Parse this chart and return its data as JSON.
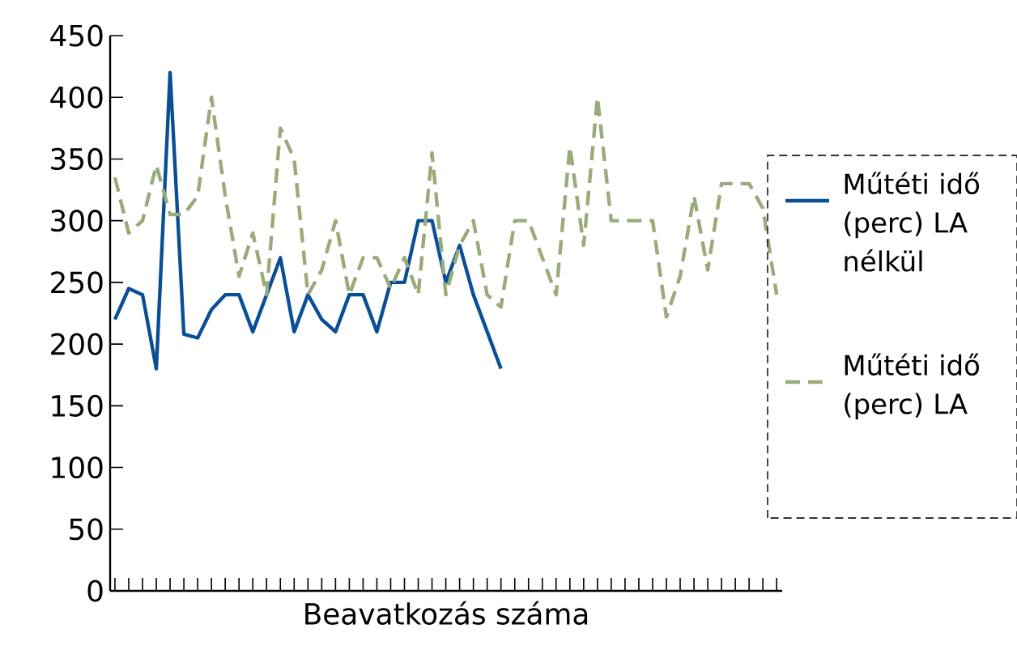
{
  "chart_data": {
    "type": "line",
    "xlabel": "Beavatkozás száma",
    "categories": [
      null,
      null,
      null,
      null,
      null,
      null,
      null,
      null,
      null,
      null,
      null,
      null,
      null,
      null,
      null,
      null,
      null,
      null,
      null,
      null,
      null,
      null,
      null,
      null,
      null,
      null,
      null,
      null,
      null,
      null,
      null,
      null,
      null,
      null,
      null,
      null,
      null,
      null,
      null,
      null,
      null,
      null,
      null,
      null,
      null,
      null,
      null,
      null,
      null
    ],
    "series": [
      {
        "name": "Műtéti idő (perc) LA nélkül",
        "color": "#0a4f96",
        "line_style": "solid",
        "values": [
          220,
          245,
          240,
          180,
          420,
          208,
          205,
          228,
          240,
          240,
          210,
          240,
          270,
          210,
          240,
          220,
          210,
          240,
          240,
          210,
          250,
          250,
          300,
          300,
          250,
          280,
          240,
          210,
          180,
          null,
          null,
          null,
          null,
          null,
          null,
          null,
          null,
          null,
          null,
          null,
          null,
          null,
          null,
          null,
          null,
          null,
          null,
          null,
          null
        ]
      },
      {
        "name": "Műtéti idő (perc) LA",
        "color": "#9aab7a",
        "line_style": "dashed",
        "values": [
          335,
          290,
          300,
          345,
          305,
          305,
          320,
          400,
          320,
          255,
          290,
          240,
          375,
          350,
          240,
          260,
          300,
          240,
          270,
          270,
          245,
          270,
          240,
          355,
          240,
          280,
          300,
          240,
          230,
          300,
          300,
          270,
          240,
          360,
          280,
          400,
          300,
          300,
          300,
          300,
          222,
          255,
          320,
          260,
          330,
          330,
          330,
          310,
          240
        ]
      }
    ],
    "ylim": [
      0,
      450
    ],
    "yticks": [
      0,
      50,
      100,
      150,
      200,
      250,
      300,
      350,
      400,
      450
    ],
    "grid": false,
    "legend": "right",
    "marker": "none"
  }
}
